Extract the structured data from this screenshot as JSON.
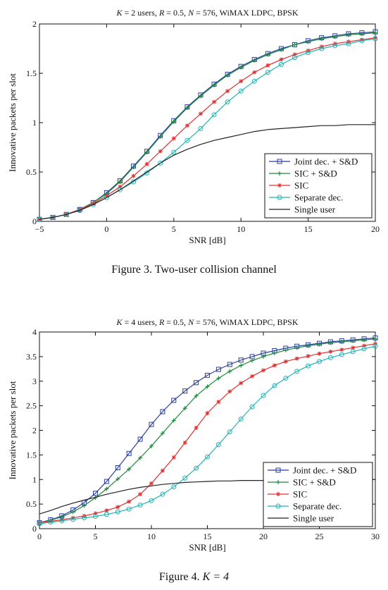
{
  "figures": [
    {
      "caption": "Figure 3.   Two-user collision channel",
      "chart_data": {
        "type": "line",
        "title": "K = 2 users, R = 0.5, N = 576, WiMAX LDPC, BPSK",
        "xlabel": "SNR [dB]",
        "ylabel": "Innovative packets per slot",
        "xlim": [
          -5,
          20
        ],
        "ylim": [
          0,
          2
        ],
        "xticks": [
          -5,
          0,
          5,
          10,
          15,
          20
        ],
        "yticks": [
          0,
          0.5,
          1,
          1.5,
          2
        ],
        "ytick_labels": [
          "0",
          "0.5",
          "1",
          "1.5",
          "2"
        ],
        "grid": false,
        "legend": "bottom-right",
        "x": [
          -5,
          -4,
          -3,
          -2,
          -1,
          0,
          1,
          2,
          3,
          4,
          5,
          6,
          7,
          8,
          9,
          10,
          11,
          12,
          13,
          14,
          15,
          16,
          17,
          18,
          19,
          20
        ],
        "series": [
          {
            "name": "Joint dec. + S&D",
            "color": "#2a3f9f",
            "marker": "square",
            "values": [
              0.02,
              0.04,
              0.07,
              0.12,
              0.19,
              0.29,
              0.41,
              0.56,
              0.71,
              0.87,
              1.02,
              1.16,
              1.28,
              1.39,
              1.49,
              1.57,
              1.64,
              1.7,
              1.75,
              1.79,
              1.83,
              1.86,
              1.88,
              1.9,
              1.91,
              1.92
            ]
          },
          {
            "name": "SIC + S&D",
            "color": "#1e8a3c",
            "marker": "plus",
            "values": [
              0.02,
              0.04,
              0.07,
              0.12,
              0.19,
              0.28,
              0.4,
              0.55,
              0.7,
              0.86,
              1.01,
              1.15,
              1.27,
              1.38,
              1.48,
              1.56,
              1.63,
              1.69,
              1.74,
              1.79,
              1.82,
              1.85,
              1.87,
              1.89,
              1.9,
              1.91
            ]
          },
          {
            "name": "SIC",
            "color": "#e03030",
            "marker": "star",
            "values": [
              0.02,
              0.04,
              0.07,
              0.12,
              0.18,
              0.26,
              0.35,
              0.46,
              0.58,
              0.71,
              0.84,
              0.97,
              1.09,
              1.21,
              1.32,
              1.42,
              1.51,
              1.58,
              1.64,
              1.69,
              1.73,
              1.77,
              1.8,
              1.82,
              1.84,
              1.86
            ]
          },
          {
            "name": "Separate dec.",
            "color": "#1fb5b8",
            "marker": "circle",
            "values": [
              0.02,
              0.04,
              0.07,
              0.11,
              0.17,
              0.24,
              0.32,
              0.4,
              0.49,
              0.59,
              0.7,
              0.82,
              0.94,
              1.08,
              1.21,
              1.32,
              1.42,
              1.51,
              1.59,
              1.66,
              1.71,
              1.75,
              1.78,
              1.8,
              1.83,
              1.85
            ]
          },
          {
            "name": "Single user",
            "color": "#222222",
            "marker": "none",
            "values": [
              0.02,
              0.04,
              0.07,
              0.11,
              0.17,
              0.24,
              0.32,
              0.41,
              0.5,
              0.59,
              0.67,
              0.73,
              0.78,
              0.82,
              0.85,
              0.88,
              0.91,
              0.93,
              0.94,
              0.95,
              0.96,
              0.97,
              0.97,
              0.98,
              0.98,
              0.98
            ]
          }
        ]
      }
    },
    {
      "caption_prefix": "Figure 4.   ",
      "caption_math": "K = 4",
      "chart_data": {
        "type": "line",
        "title": "K = 4 users, R = 0.5, N = 576, WiMAX LDPC, BPSK",
        "xlabel": "SNR [dB]",
        "ylabel": "Innovative packets per slot",
        "xlim": [
          0,
          30
        ],
        "ylim": [
          0,
          4
        ],
        "xticks": [
          0,
          5,
          10,
          15,
          20,
          25,
          30
        ],
        "yticks": [
          0,
          0.5,
          1,
          1.5,
          2,
          2.5,
          3,
          3.5,
          4
        ],
        "ytick_labels": [
          "0",
          "0.5",
          "1",
          "1.5",
          "2",
          "2.5",
          "3",
          "3.5",
          "4"
        ],
        "grid": false,
        "legend": "bottom-right",
        "x": [
          0,
          1,
          2,
          3,
          4,
          5,
          6,
          7,
          8,
          9,
          10,
          11,
          12,
          13,
          14,
          15,
          16,
          17,
          18,
          19,
          20,
          21,
          22,
          23,
          24,
          25,
          26,
          27,
          28,
          29,
          30
        ],
        "series": [
          {
            "name": "Joint dec. + S&D",
            "color": "#2a3f9f",
            "marker": "square",
            "values": [
              0.12,
              0.18,
              0.26,
              0.38,
              0.53,
              0.72,
              0.96,
              1.24,
              1.53,
              1.82,
              2.12,
              2.38,
              2.61,
              2.8,
              2.97,
              3.12,
              3.24,
              3.34,
              3.43,
              3.5,
              3.57,
              3.62,
              3.67,
              3.71,
              3.74,
              3.77,
              3.8,
              3.82,
              3.84,
              3.86,
              3.88
            ]
          },
          {
            "name": "SIC + S&D",
            "color": "#1e8a3c",
            "marker": "plus",
            "values": [
              0.12,
              0.17,
              0.24,
              0.34,
              0.47,
              0.63,
              0.81,
              1.01,
              1.21,
              1.44,
              1.68,
              1.94,
              2.2,
              2.45,
              2.7,
              2.89,
              3.06,
              3.2,
              3.32,
              3.42,
              3.5,
              3.57,
              3.63,
              3.68,
              3.72,
              3.75,
              3.78,
              3.8,
              3.82,
              3.84,
              3.86
            ]
          },
          {
            "name": "SIC",
            "color": "#e03030",
            "marker": "star",
            "values": [
              0.12,
              0.15,
              0.18,
              0.22,
              0.26,
              0.31,
              0.37,
              0.44,
              0.55,
              0.7,
              0.92,
              1.18,
              1.45,
              1.75,
              2.05,
              2.35,
              2.58,
              2.79,
              2.96,
              3.1,
              3.22,
              3.32,
              3.4,
              3.46,
              3.51,
              3.56,
              3.6,
              3.64,
              3.68,
              3.72,
              3.76
            ]
          },
          {
            "name": "Separate dec.",
            "color": "#1fb5b8",
            "marker": "circle",
            "values": [
              0.1,
              0.13,
              0.16,
              0.19,
              0.22,
              0.25,
              0.29,
              0.34,
              0.4,
              0.48,
              0.57,
              0.7,
              0.85,
              1.03,
              1.23,
              1.46,
              1.71,
              1.97,
              2.23,
              2.48,
              2.71,
              2.91,
              3.06,
              3.2,
              3.31,
              3.4,
              3.48,
              3.54,
              3.6,
              3.66,
              3.71
            ]
          },
          {
            "name": "Single user",
            "color": "#222222",
            "marker": "none",
            "values": [
              0.3,
              0.37,
              0.45,
              0.52,
              0.58,
              0.64,
              0.7,
              0.75,
              0.8,
              0.84,
              0.87,
              0.9,
              0.92,
              0.94,
              0.95,
              0.96,
              0.97,
              0.97,
              0.98,
              0.98,
              0.98,
              0.99,
              0.99,
              0.99,
              0.99,
              0.99,
              0.99,
              1.0,
              1.0,
              1.0,
              1.0
            ]
          }
        ]
      }
    }
  ]
}
